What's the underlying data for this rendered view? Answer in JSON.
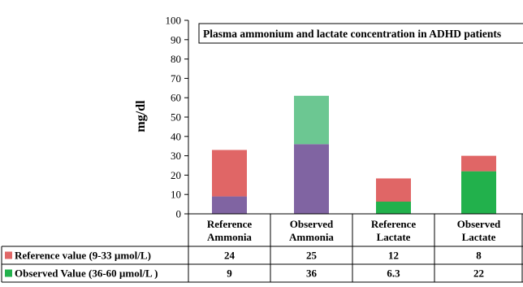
{
  "chart_data": {
    "type": "bar",
    "stacked": true,
    "title": "Plasma ammonium and lactate concentration in ADHD patients",
    "ylabel": "mg/dl",
    "ylim": [
      0,
      100
    ],
    "y_ticks": [
      0,
      10,
      20,
      30,
      40,
      50,
      60,
      70,
      80,
      90,
      100
    ],
    "categories": [
      {
        "line1": "Reference",
        "line2": "Ammonia"
      },
      {
        "line1": "Observed",
        "line2": "Ammonia"
      },
      {
        "line1": "Reference",
        "line2": "Lactate"
      },
      {
        "line1": "Observed",
        "line2": "Lactate"
      }
    ],
    "bar_colors": [
      {
        "bottom": "#8064a2",
        "top": "#e06666"
      },
      {
        "bottom": "#8064a2",
        "top": "#6cc792"
      },
      {
        "bottom": "#22b14c",
        "top": "#e06666"
      },
      {
        "bottom": "#22b14c",
        "top": "#e06666"
      }
    ],
    "bar_totals": [
      33,
      61,
      18.3,
      30
    ],
    "series": [
      {
        "name": "Reference value (9-33 µmol/L)",
        "color": "#e06666",
        "table_values": [
          "24",
          "25",
          "12",
          "8"
        ]
      },
      {
        "name": "Observed Value (36-60  µmol/L )",
        "color": "#22b14c",
        "table_values": [
          "9",
          "36",
          "6.3",
          "22"
        ]
      }
    ],
    "grid": false,
    "legend": "data-table"
  }
}
